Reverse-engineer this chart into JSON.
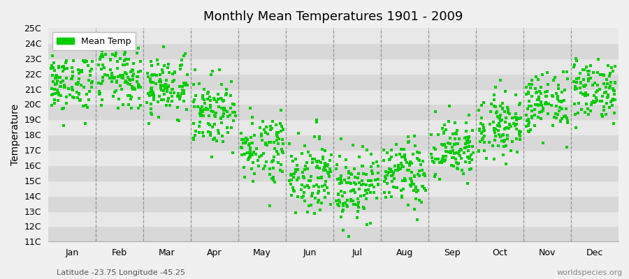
{
  "title": "Monthly Mean Temperatures 1901 - 2009",
  "ylabel": "Temperature",
  "xlabel_labels": [
    "Jan",
    "Feb",
    "Mar",
    "Apr",
    "May",
    "Jun",
    "Jul",
    "Aug",
    "Sep",
    "Oct",
    "Nov",
    "Dec"
  ],
  "ytick_labels": [
    "11C",
    "12C",
    "13C",
    "14C",
    "15C",
    "16C",
    "17C",
    "18C",
    "19C",
    "20C",
    "21C",
    "22C",
    "23C",
    "24C",
    "25C"
  ],
  "ytick_values": [
    11,
    12,
    13,
    14,
    15,
    16,
    17,
    18,
    19,
    20,
    21,
    22,
    23,
    24,
    25
  ],
  "ylim": [
    11,
    25
  ],
  "dot_color": "#00cc00",
  "dot_size": 6,
  "background_color": "#f0f0f0",
  "plot_bg_color": "#e8e8e8",
  "stripe_color_dark": "#d8d8d8",
  "stripe_color_light": "#e8e8e8",
  "footer_left": "Latitude -23.75 Longitude -45.25",
  "footer_right": "worldspecies.org",
  "legend_label": "Mean Temp",
  "years": 109,
  "monthly_means": [
    21.2,
    21.5,
    21.0,
    19.3,
    17.0,
    15.2,
    14.5,
    15.2,
    16.8,
    18.5,
    19.8,
    20.8
  ],
  "monthly_stds": [
    1.0,
    1.0,
    1.0,
    1.1,
    1.1,
    1.2,
    1.2,
    1.1,
    1.0,
    1.0,
    1.0,
    1.0
  ],
  "seed": 42
}
